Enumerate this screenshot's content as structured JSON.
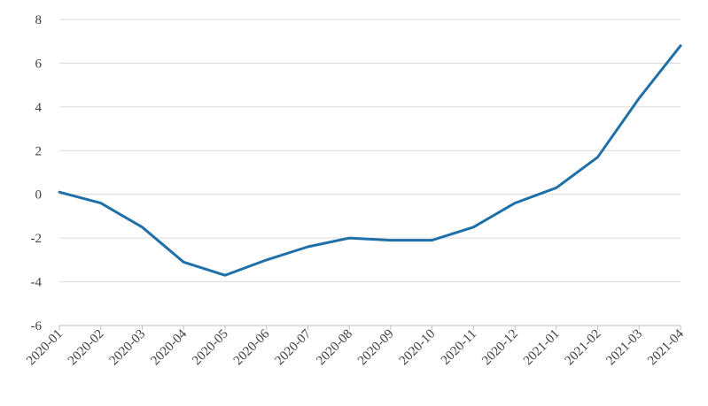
{
  "chart_data": {
    "type": "line",
    "title": "",
    "xlabel": "",
    "ylabel": "",
    "categories": [
      "2020-01",
      "2020-02",
      "2020-03",
      "2020-04",
      "2020-05",
      "2020-06",
      "2020-07",
      "2020-08",
      "2020-09",
      "2020-10",
      "2020-11",
      "2020-12",
      "2021-01",
      "2021-02",
      "2021-03",
      "2021-04"
    ],
    "series": [
      {
        "values": [
          0.1,
          -0.4,
          -1.5,
          -3.1,
          -3.7,
          -3.0,
          -2.4,
          -2.0,
          -2.1,
          -2.1,
          -1.5,
          -0.4,
          0.3,
          1.7,
          4.4,
          6.8
        ],
        "color": "#1f6fa8"
      }
    ],
    "ylim": [
      -6,
      8
    ],
    "yticks": [
      "8",
      "6",
      "4",
      "2",
      "0",
      "-2",
      "-4",
      "-6"
    ],
    "grid": "horizontal",
    "legend": "none"
  }
}
